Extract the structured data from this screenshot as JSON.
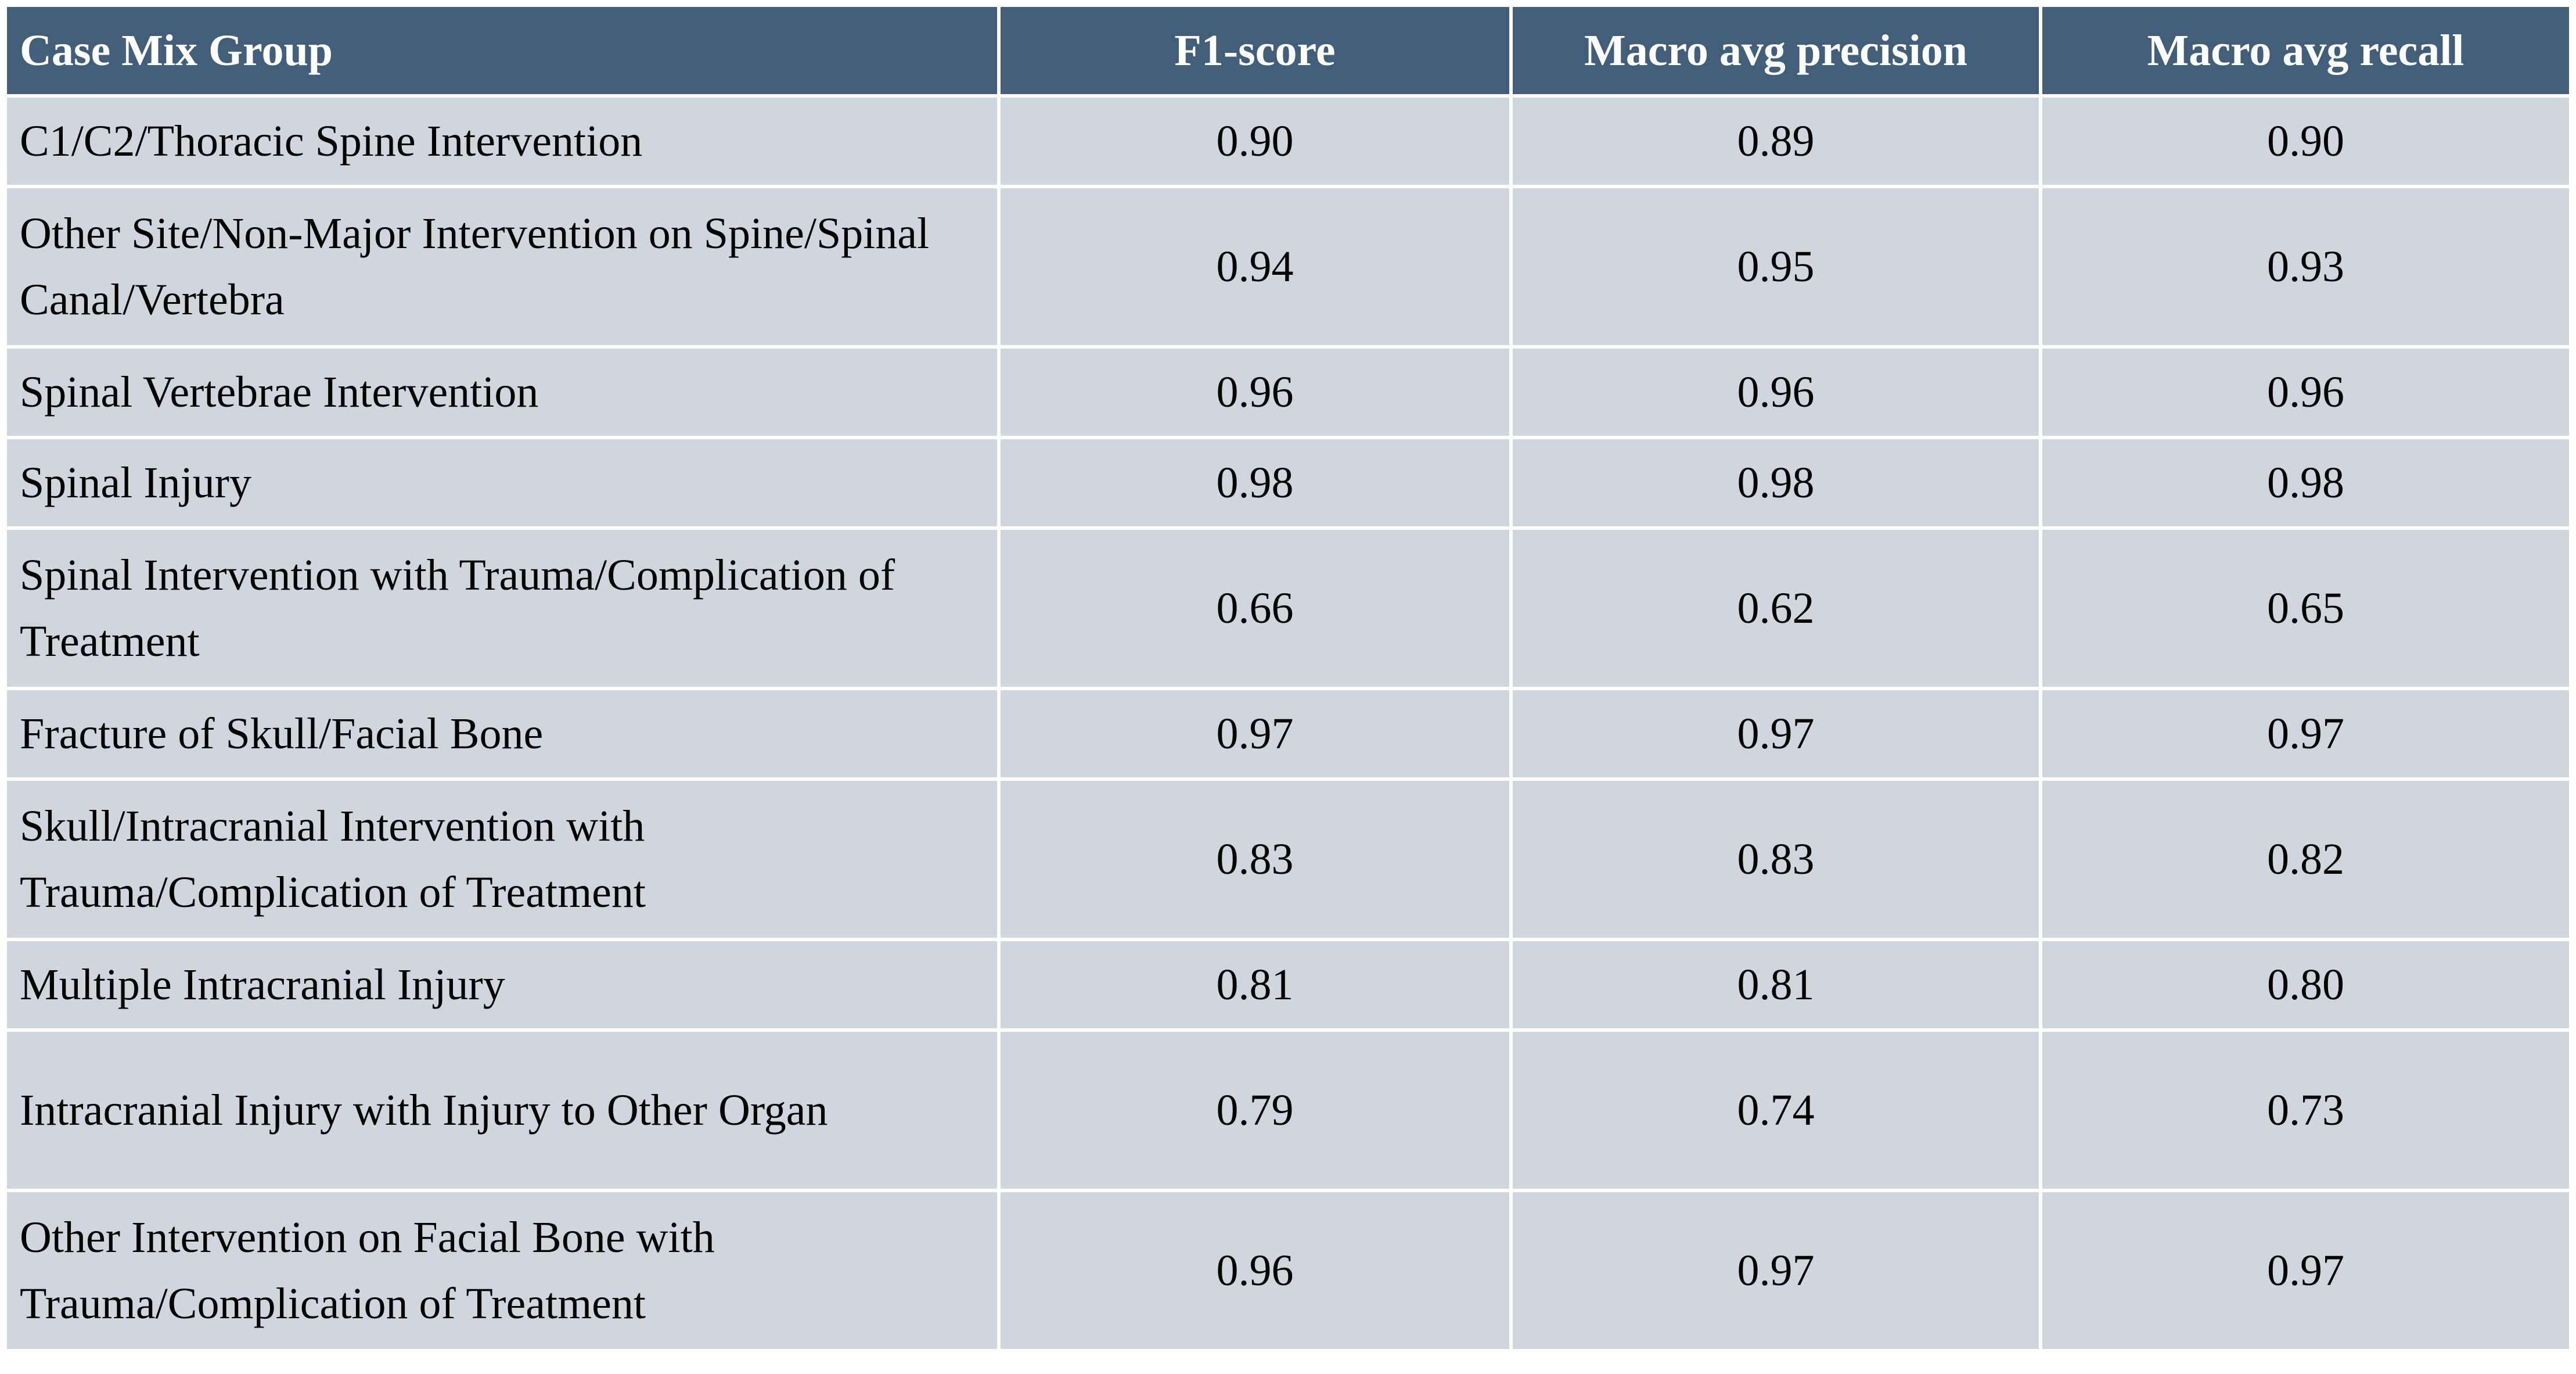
{
  "table": {
    "headers": [
      "Case Mix Group",
      "F1-score",
      "Macro avg precision",
      "Macro avg recall"
    ],
    "rows": [
      {
        "group": "C1/C2/Thoracic Spine Intervention",
        "f1": "0.90",
        "precision": "0.89",
        "recall": "0.90"
      },
      {
        "group": "Other Site/Non-Major Intervention on Spine/Spinal Canal/Vertebra",
        "f1": "0.94",
        "precision": "0.95",
        "recall": "0.93"
      },
      {
        "group": "Spinal Vertebrae Intervention",
        "f1": "0.96",
        "precision": "0.96",
        "recall": "0.96"
      },
      {
        "group": "Spinal Injury",
        "f1": "0.98",
        "precision": "0.98",
        "recall": "0.98"
      },
      {
        "group": "Spinal Intervention with Trauma/Complication of Treatment",
        "f1": "0.66",
        "precision": "0.62",
        "recall": "0.65"
      },
      {
        "group": "Fracture of Skull/Facial Bone",
        "f1": "0.97",
        "precision": "0.97",
        "recall": "0.97"
      },
      {
        "group": "Skull/Intracranial Intervention with Trauma/Complication of Treatment",
        "f1": "0.83",
        "precision": "0.83",
        "recall": "0.82"
      },
      {
        "group": "Multiple Intracranial Injury",
        "f1": "0.81",
        "precision": "0.81",
        "recall": "0.80"
      },
      {
        "group": "Intracranial Injury with Injury to Other Organ",
        "f1": "0.79",
        "precision": "0.74",
        "recall": "0.73"
      },
      {
        "group": "Other Intervention on Facial Bone with Trauma/Complication of Treatment",
        "f1": "0.96",
        "precision": "0.97",
        "recall": "0.97"
      }
    ]
  },
  "colors": {
    "header_bg": "#435e78",
    "header_text": "#ffffff",
    "cell_bg": "#d0d6dd",
    "grid": "#ffffff"
  }
}
